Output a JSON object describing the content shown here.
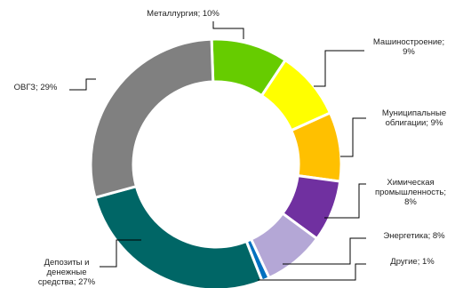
{
  "chart_data": {
    "type": "pie",
    "variant": "donut",
    "title": "",
    "legend": "none",
    "slices": [
      {
        "label": "Металлургия; 10%",
        "value": 10,
        "color": "#66cc00"
      },
      {
        "label": "Машиностроение; 9%",
        "value": 9,
        "color": "#ffff00"
      },
      {
        "label": "Муниципальные облигации; 9%",
        "value": 9,
        "color": "#ffc000"
      },
      {
        "label": "Химическая промышленность; 8%",
        "value": 8,
        "color": "#7030a0"
      },
      {
        "label": "Энергетика; 8%",
        "value": 8,
        "color": "#b4a7d6"
      },
      {
        "label": "Другие; 1%",
        "value": 1,
        "color": "#0070c0"
      },
      {
        "label": "Депозиты и денежные средства; 27%",
        "value": 27,
        "color": "#006666"
      },
      {
        "label": "ОВГЗ; 29%",
        "value": 29,
        "color": "#808080"
      }
    ]
  }
}
